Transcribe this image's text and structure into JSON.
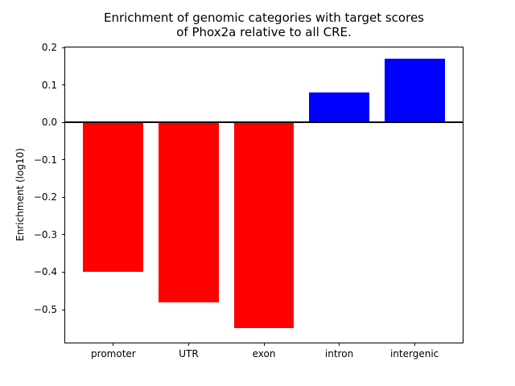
{
  "figure": {
    "title": "Enrichment of genomic categories with target scores\nof Phox2a relative to all CRE.",
    "background_color": "#ffffff"
  },
  "chart_data": {
    "type": "bar",
    "title": "Enrichment of genomic categories with target scores of Phox2a relative to all CRE.",
    "xlabel": "",
    "ylabel": "Enrichment (log10)",
    "categories": [
      "promoter",
      "UTR",
      "exon",
      "intron",
      "intergenic"
    ],
    "values": [
      -0.4,
      -0.48,
      -0.55,
      0.08,
      0.17
    ],
    "bar_colors": [
      "#ff0000",
      "#ff0000",
      "#ff0000",
      "#0000ff",
      "#0000ff"
    ],
    "negative_color": "#ff0000",
    "positive_color": "#0000ff",
    "bar_width": 0.8,
    "xlim": [
      -0.64,
      4.64
    ],
    "ylim": [
      -0.588,
      0.2
    ],
    "yticks": [
      0.2,
      0.1,
      0.0,
      -0.1,
      -0.2,
      -0.3,
      -0.4,
      -0.5
    ],
    "ytick_labels": [
      "0.2",
      "0.1",
      "0.0",
      "−0.1",
      "−0.2",
      "−0.3",
      "−0.4",
      "−0.5"
    ],
    "zero_line": true,
    "grid": false,
    "legend": null
  }
}
